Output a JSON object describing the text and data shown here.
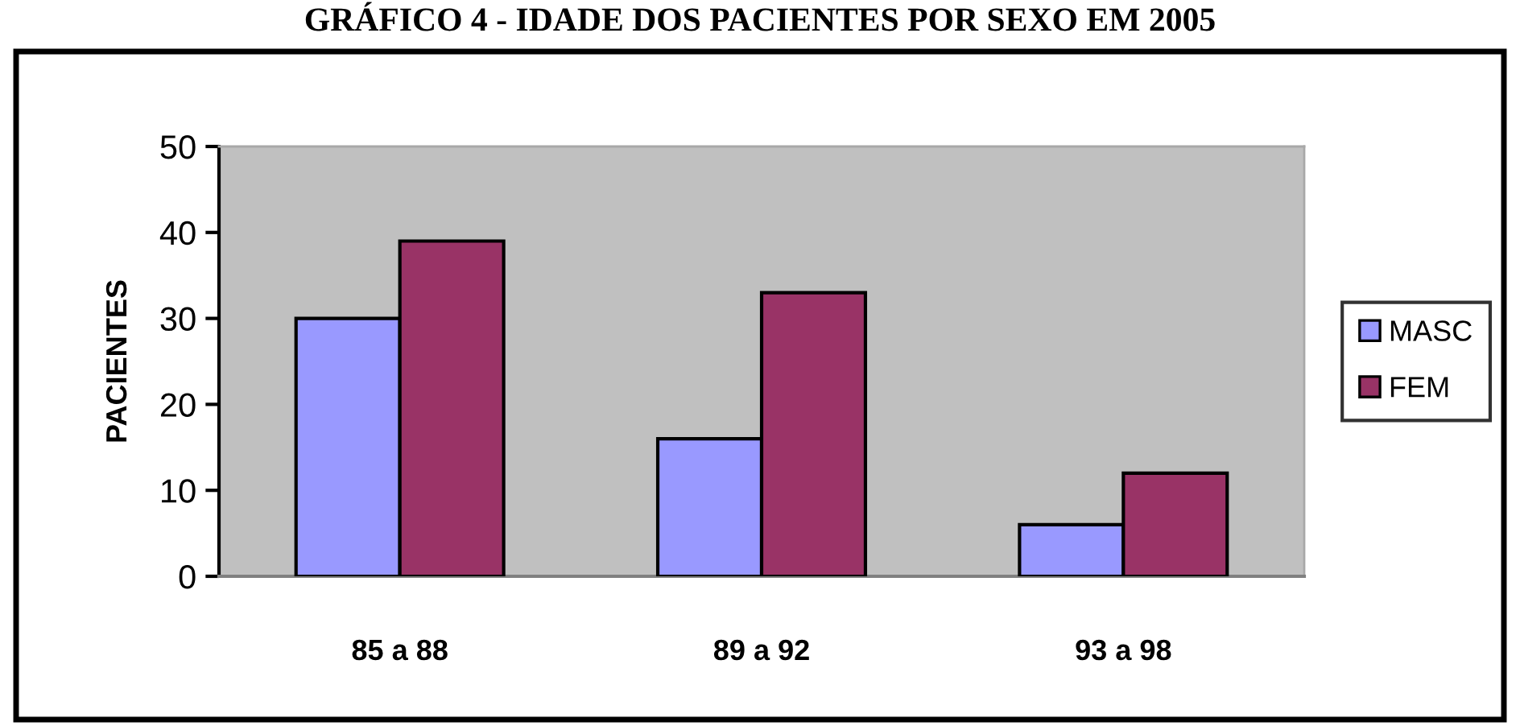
{
  "chart_data": {
    "type": "bar",
    "title": "GRÁFICO 4 - IDADE DOS PACIENTES POR SEXO EM 2005",
    "ylabel": "PACIENTES",
    "categories": [
      "85 a 88",
      "89 a 92",
      "93 a 98"
    ],
    "series": [
      {
        "name": "MASC",
        "color": "#9999ff",
        "values": [
          30,
          16,
          6
        ]
      },
      {
        "name": "FEM",
        "color": "#993366",
        "values": [
          39,
          33,
          12
        ]
      }
    ],
    "ylim": [
      0,
      50
    ],
    "yticks": [
      0,
      10,
      20,
      30,
      40,
      50
    ],
    "legend": "right"
  }
}
